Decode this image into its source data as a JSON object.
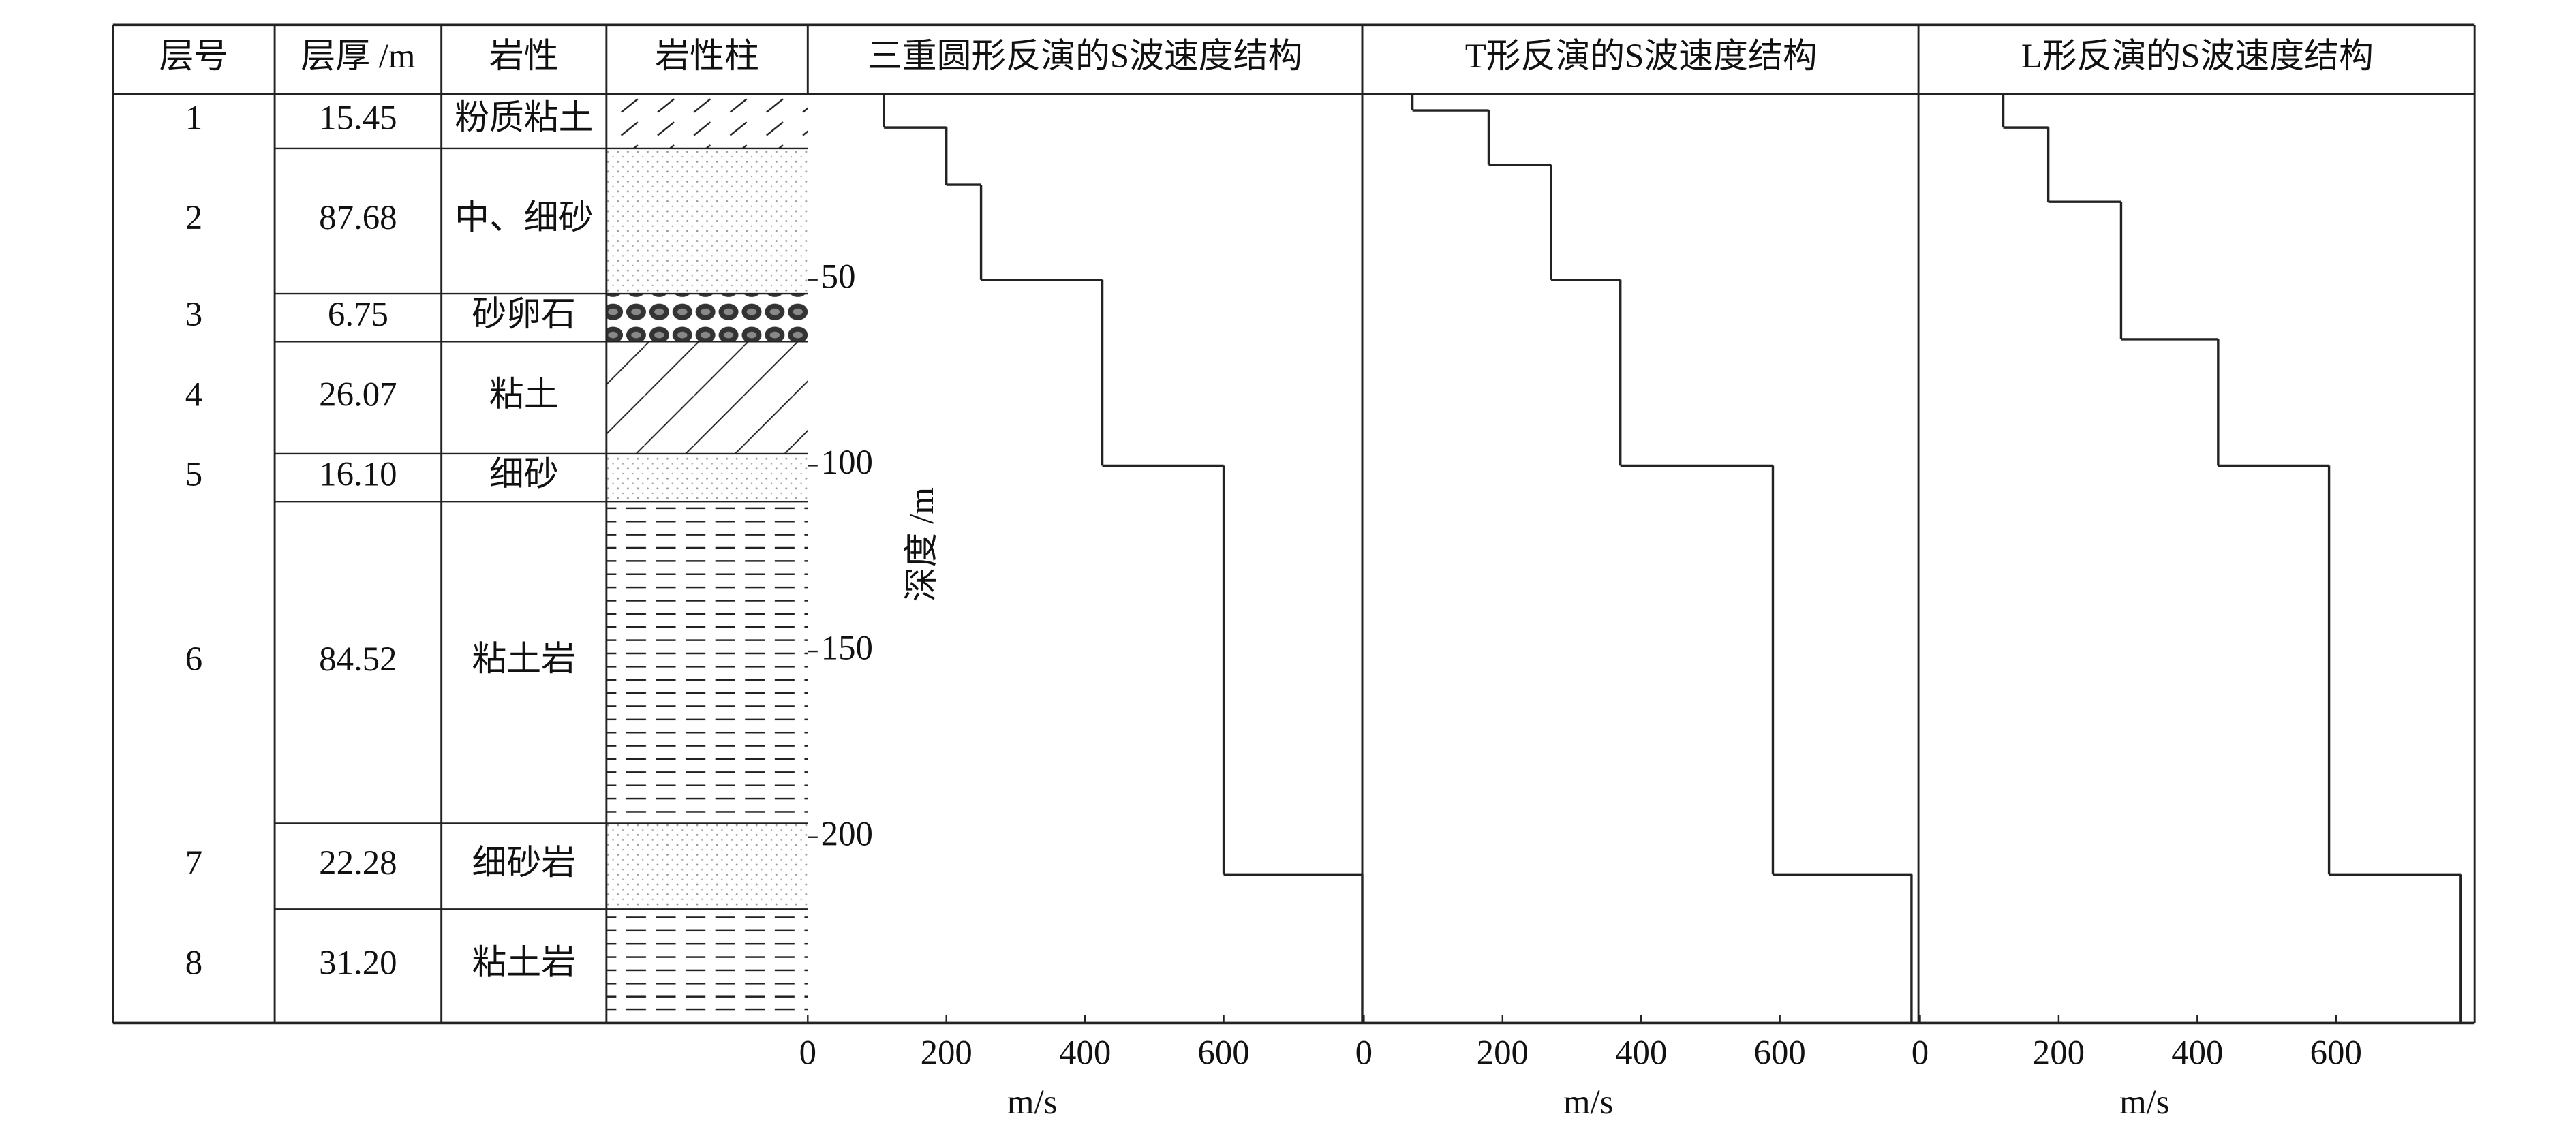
{
  "table": {
    "header": [
      "层号",
      "层厚 /m",
      "岩性",
      "岩性柱"
    ],
    "rows": [
      [
        "1",
        "15.45",
        "粉质粘土"
      ],
      [
        "2",
        "87.68",
        "中、细砂"
      ],
      [
        "3",
        "6.75",
        "砂卵石"
      ],
      [
        "4",
        "26.07",
        "粘土"
      ],
      [
        "5",
        "16.10",
        "细砂"
      ],
      [
        "6",
        "84.52",
        "粘土岩"
      ],
      [
        "7",
        "22.28",
        "细砂岩"
      ],
      [
        "8",
        "31.20",
        "粘土岩"
      ]
    ]
  },
  "chart_data": [
    {
      "type": "step",
      "title": "三重圆形反演的S波速度结构",
      "xlabel": "m/s",
      "ylabel": "深度 /m",
      "xlim": [
        0,
        800
      ],
      "xticks": [
        0,
        200,
        400,
        600
      ],
      "ylim": [
        0,
        250
      ],
      "yticks": [
        50,
        100,
        150,
        200
      ],
      "y_inverted": true,
      "color": "#222",
      "velocities": [
        110,
        200,
        250,
        425,
        600,
        800
      ],
      "depths": [
        0,
        9,
        24.4,
        50,
        100,
        210
      ]
    },
    {
      "type": "step",
      "title": "T形反演的S波速度结构",
      "xlabel": "m/s",
      "xlim": [
        0,
        800
      ],
      "xticks": [
        0,
        200,
        400,
        600
      ],
      "ylim": [
        0,
        250
      ],
      "y_inverted": true,
      "color": "#222",
      "velocities": [
        70,
        180,
        270,
        370,
        590,
        790
      ],
      "depths": [
        0,
        4.4,
        19,
        50,
        100,
        210
      ]
    },
    {
      "type": "step",
      "title": "L形反演的S波速度结构",
      "xlabel": "m/s",
      "xlim": [
        0,
        800
      ],
      "xticks": [
        0,
        200,
        400,
        600
      ],
      "ylim": [
        0,
        250
      ],
      "y_inverted": true,
      "color": "#222",
      "velocities": [
        120,
        185,
        290,
        430,
        590,
        780
      ],
      "depths": [
        0,
        9,
        29,
        66,
        100,
        210
      ]
    }
  ]
}
